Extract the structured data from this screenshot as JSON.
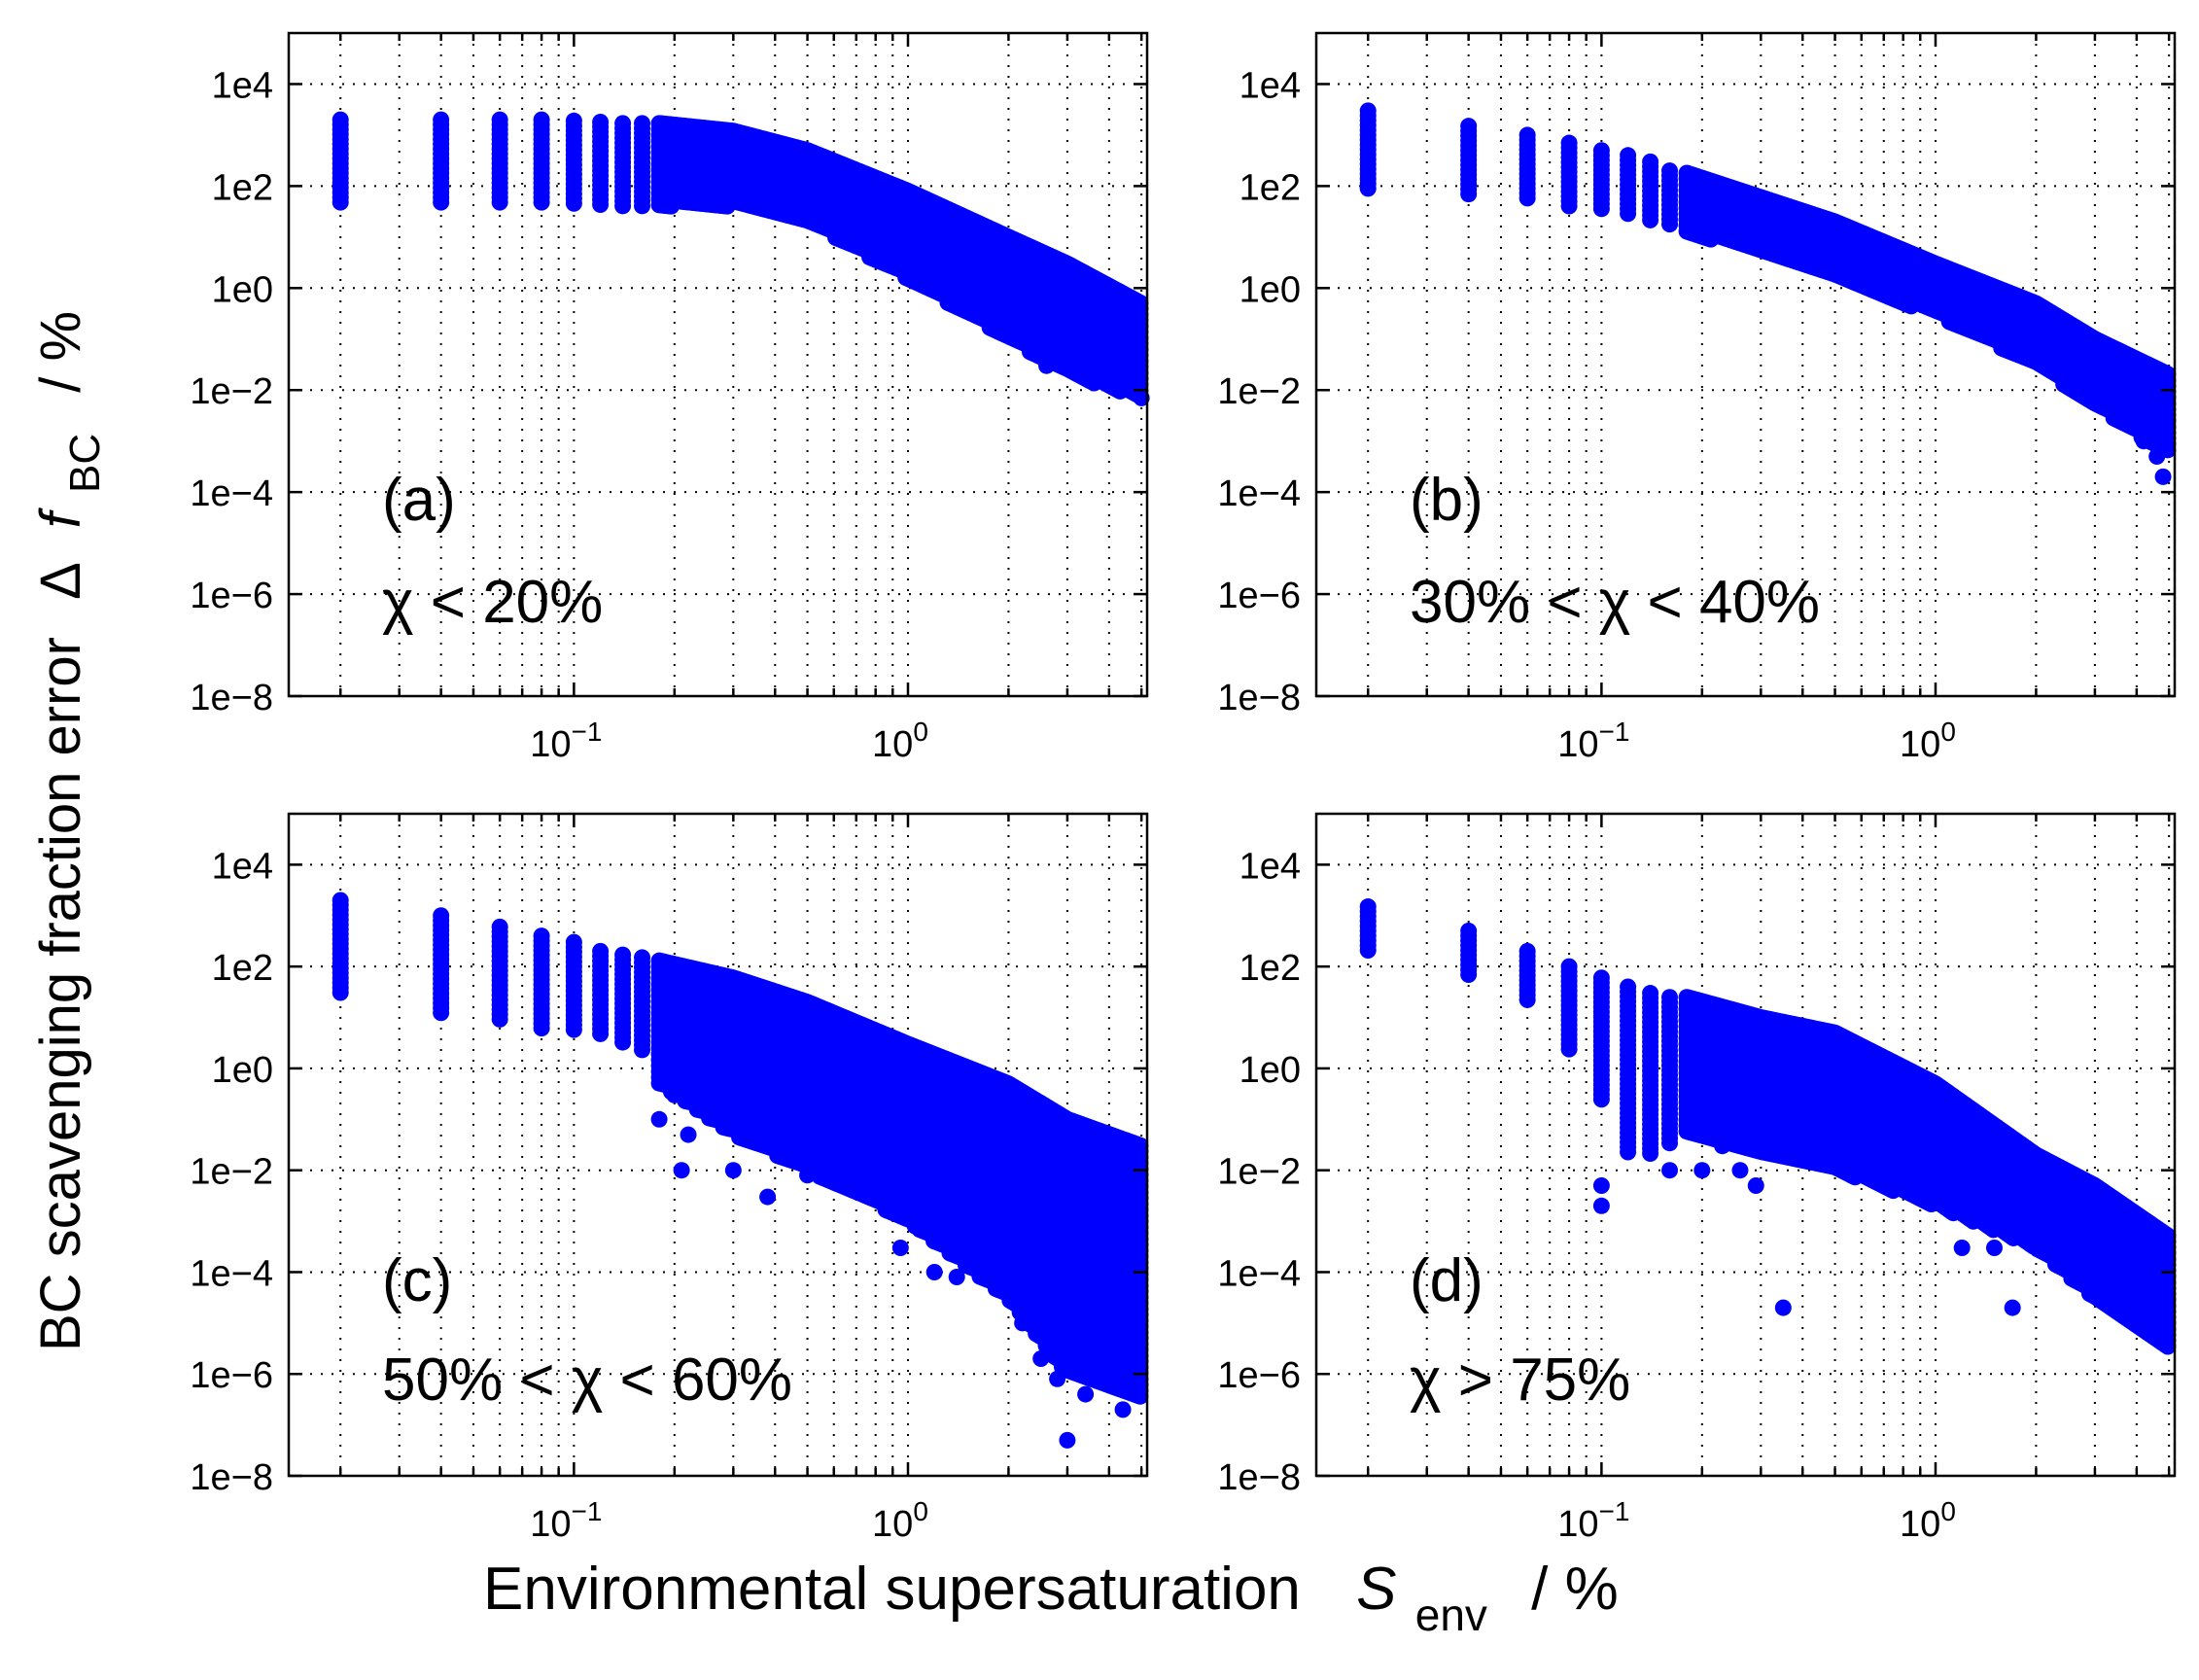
{
  "figure": {
    "ylabel": {
      "main": "BC scavenging fraction error",
      "symbol_delta": "Δ",
      "symbol_f": "f",
      "subscript": "BC",
      "unit": "/  %"
    },
    "xlabel": {
      "main": "Environmental supersaturation",
      "symbol": "S",
      "subscript": "env",
      "unit": "/  %"
    },
    "marker_color": "#0000ff"
  },
  "chart_data": [
    {
      "type": "scatter",
      "panel": "a",
      "label": "(a)",
      "condition": "χ < 20%",
      "xscale": "log",
      "yscale": "log",
      "xlim": [
        0.014,
        5.2
      ],
      "ylim": [
        1e-08,
        100000.0
      ],
      "xticks": [
        {
          "v": 0.1,
          "base": "10",
          "exp": "−1"
        },
        {
          "v": 1,
          "base": "10",
          "exp": "0"
        }
      ],
      "yticks": [
        {
          "v": 10000.0,
          "label": "1e4"
        },
        {
          "v": 100.0,
          "label": "1e2"
        },
        {
          "v": 1,
          "label": "1e0"
        },
        {
          "v": 0.01,
          "label": "1e−2"
        },
        {
          "v": 0.0001,
          "label": "1e−4"
        },
        {
          "v": 1e-06,
          "label": "1e−6"
        },
        {
          "v": 1e-08,
          "label": "1e−8"
        }
      ],
      "grid": true,
      "columns": [
        {
          "x": 0.02,
          "ymin": 40,
          "ymax": 2000
        },
        {
          "x": 0.04,
          "ymin": 40,
          "ymax": 2000
        },
        {
          "x": 0.06,
          "ymin": 40,
          "ymax": 2000
        },
        {
          "x": 0.08,
          "ymin": 40,
          "ymax": 2000
        },
        {
          "x": 0.1,
          "ymin": 40,
          "ymax": 1900
        },
        {
          "x": 0.12,
          "ymin": 40,
          "ymax": 1800
        },
        {
          "x": 0.14,
          "ymin": 40,
          "ymax": 1700
        },
        {
          "x": 0.16,
          "ymin": 40,
          "ymax": 1700
        }
      ],
      "band": [
        {
          "x": 0.18,
          "ymin": 40,
          "ymax": 1700
        },
        {
          "x": 0.3,
          "ymin": 40,
          "ymax": 1200
        },
        {
          "x": 0.5,
          "ymin": 20,
          "ymax": 500
        },
        {
          "x": 1,
          "ymin": 1.5,
          "ymax": 80
        },
        {
          "x": 2,
          "ymin": 0.1,
          "ymax": 10
        },
        {
          "x": 3,
          "ymin": 0.02,
          "ymax": 3
        },
        {
          "x": 5,
          "ymin": 0.007,
          "ymax": 0.5
        }
      ],
      "outliers": [
        {
          "x": 5.0,
          "y": 0.007
        },
        {
          "x": 2.6,
          "y": 0.03
        },
        {
          "x": 4.6,
          "y": 0.01
        }
      ]
    },
    {
      "type": "scatter",
      "panel": "b",
      "label": "(b)",
      "condition": "30% < χ < 40%",
      "xscale": "log",
      "yscale": "log",
      "xlim": [
        0.014,
        5.2
      ],
      "ylim": [
        1e-08,
        100000.0
      ],
      "xticks": [
        {
          "v": 0.1,
          "base": "10",
          "exp": "−1"
        },
        {
          "v": 1,
          "base": "10",
          "exp": "0"
        }
      ],
      "yticks": [
        {
          "v": 10000.0,
          "label": "1e4"
        },
        {
          "v": 100.0,
          "label": "1e2"
        },
        {
          "v": 1,
          "label": "1e0"
        },
        {
          "v": 0.01,
          "label": "1e−2"
        },
        {
          "v": 0.0001,
          "label": "1e−4"
        },
        {
          "v": 1e-06,
          "label": "1e−6"
        },
        {
          "v": 1e-08,
          "label": "1e−8"
        }
      ],
      "grid": true,
      "columns": [
        {
          "x": 0.02,
          "ymin": 80,
          "ymax": 3000
        },
        {
          "x": 0.04,
          "ymin": 60,
          "ymax": 1500
        },
        {
          "x": 0.06,
          "ymin": 50,
          "ymax": 1000
        },
        {
          "x": 0.08,
          "ymin": 40,
          "ymax": 700
        },
        {
          "x": 0.1,
          "ymin": 30,
          "ymax": 500
        },
        {
          "x": 0.12,
          "ymin": 25,
          "ymax": 400
        },
        {
          "x": 0.14,
          "ymin": 20,
          "ymax": 300
        },
        {
          "x": 0.16,
          "ymin": 15,
          "ymax": 200
        }
      ],
      "band": [
        {
          "x": 0.18,
          "ymin": 12,
          "ymax": 180
        },
        {
          "x": 0.3,
          "ymin": 5,
          "ymax": 60
        },
        {
          "x": 0.5,
          "ymin": 1.5,
          "ymax": 20
        },
        {
          "x": 1,
          "ymin": 0.3,
          "ymax": 3
        },
        {
          "x": 2,
          "ymin": 0.03,
          "ymax": 0.5
        },
        {
          "x": 3,
          "ymin": 0.005,
          "ymax": 0.1
        },
        {
          "x": 5,
          "ymin": 0.0005,
          "ymax": 0.02
        }
      ],
      "outliers": [
        {
          "x": 4.8,
          "y": 0.0002
        },
        {
          "x": 4.6,
          "y": 0.0005
        },
        {
          "x": 4.2,
          "y": 0.001
        }
      ]
    },
    {
      "type": "scatter",
      "panel": "c",
      "label": "(c)",
      "condition": "50% < χ < 60%",
      "xscale": "log",
      "yscale": "log",
      "xlim": [
        0.014,
        5.2
      ],
      "ylim": [
        1e-08,
        100000.0
      ],
      "xticks": [
        {
          "v": 0.1,
          "base": "10",
          "exp": "−1"
        },
        {
          "v": 1,
          "base": "10",
          "exp": "0"
        }
      ],
      "yticks": [
        {
          "v": 10000.0,
          "label": "1e4"
        },
        {
          "v": 100.0,
          "label": "1e2"
        },
        {
          "v": 1,
          "label": "1e0"
        },
        {
          "v": 0.01,
          "label": "1e−2"
        },
        {
          "v": 0.0001,
          "label": "1e−4"
        },
        {
          "v": 1e-06,
          "label": "1e−6"
        },
        {
          "v": 1e-08,
          "label": "1e−8"
        }
      ],
      "grid": true,
      "columns": [
        {
          "x": 0.02,
          "ymin": 30,
          "ymax": 2000
        },
        {
          "x": 0.04,
          "ymin": 12,
          "ymax": 1000
        },
        {
          "x": 0.06,
          "ymin": 8,
          "ymax": 600
        },
        {
          "x": 0.08,
          "ymin": 6,
          "ymax": 400
        },
        {
          "x": 0.1,
          "ymin": 5,
          "ymax": 300
        },
        {
          "x": 0.12,
          "ymin": 4,
          "ymax": 200
        },
        {
          "x": 0.14,
          "ymin": 3,
          "ymax": 170
        },
        {
          "x": 0.16,
          "ymin": 2,
          "ymax": 150
        }
      ],
      "band": [
        {
          "x": 0.18,
          "ymin": 0.5,
          "ymax": 130
        },
        {
          "x": 0.3,
          "ymin": 0.05,
          "ymax": 60
        },
        {
          "x": 0.5,
          "ymin": 0.01,
          "ymax": 20
        },
        {
          "x": 1,
          "ymin": 0.001,
          "ymax": 3
        },
        {
          "x": 2,
          "ymin": 3e-05,
          "ymax": 0.5
        },
        {
          "x": 3,
          "ymin": 1e-06,
          "ymax": 0.1
        },
        {
          "x": 5,
          "ymin": 3e-07,
          "ymax": 0.03
        }
      ],
      "outliers": [
        {
          "x": 0.18,
          "y": 0.1
        },
        {
          "x": 0.2,
          "y": 0.3
        },
        {
          "x": 0.22,
          "y": 0.05
        },
        {
          "x": 0.25,
          "y": 0.15
        },
        {
          "x": 0.28,
          "y": 0.08
        },
        {
          "x": 0.21,
          "y": 0.01
        },
        {
          "x": 0.3,
          "y": 0.01
        },
        {
          "x": 0.38,
          "y": 0.003
        },
        {
          "x": 0.45,
          "y": 0.02
        },
        {
          "x": 0.5,
          "y": 0.008
        },
        {
          "x": 0.55,
          "y": 0.05
        },
        {
          "x": 0.7,
          "y": 0.004
        },
        {
          "x": 0.85,
          "y": 0.002
        },
        {
          "x": 0.95,
          "y": 0.0003
        },
        {
          "x": 1.05,
          "y": 0.0008
        },
        {
          "x": 1.2,
          "y": 0.0001
        },
        {
          "x": 1.4,
          "y": 8e-05
        },
        {
          "x": 1.6,
          "y": 0.0002
        },
        {
          "x": 2.2,
          "y": 1e-05
        },
        {
          "x": 2.5,
          "y": 2e-06
        },
        {
          "x": 2.8,
          "y": 8e-07
        },
        {
          "x": 3.0,
          "y": 5e-08
        },
        {
          "x": 3.4,
          "y": 4e-07
        },
        {
          "x": 4.4,
          "y": 2e-07
        }
      ]
    },
    {
      "type": "scatter",
      "panel": "d",
      "label": "(d)",
      "condition": "χ > 75%",
      "xscale": "log",
      "yscale": "log",
      "xlim": [
        0.014,
        5.2
      ],
      "ylim": [
        1e-08,
        100000.0
      ],
      "xticks": [
        {
          "v": 0.1,
          "base": "10",
          "exp": "−1"
        },
        {
          "v": 1,
          "base": "10",
          "exp": "0"
        }
      ],
      "yticks": [
        {
          "v": 10000.0,
          "label": "1e4"
        },
        {
          "v": 100.0,
          "label": "1e2"
        },
        {
          "v": 1,
          "label": "1e0"
        },
        {
          "v": 0.01,
          "label": "1e−2"
        },
        {
          "v": 0.0001,
          "label": "1e−4"
        },
        {
          "v": 1e-06,
          "label": "1e−6"
        },
        {
          "v": 1e-08,
          "label": "1e−8"
        }
      ],
      "grid": true,
      "columns": [
        {
          "x": 0.02,
          "ymin": 200,
          "ymax": 1500
        },
        {
          "x": 0.04,
          "ymin": 60,
          "ymax": 500
        },
        {
          "x": 0.06,
          "ymin": 20,
          "ymax": 200
        },
        {
          "x": 0.08,
          "ymin": 2,
          "ymax": 100
        },
        {
          "x": 0.1,
          "ymin": 0.2,
          "ymax": 60
        },
        {
          "x": 0.12,
          "ymin": 0.02,
          "ymax": 40
        },
        {
          "x": 0.14,
          "ymin": 0.02,
          "ymax": 30
        },
        {
          "x": 0.16,
          "ymin": 0.03,
          "ymax": 25
        }
      ],
      "band": [
        {
          "x": 0.18,
          "ymin": 0.05,
          "ymax": 25
        },
        {
          "x": 0.3,
          "ymin": 0.02,
          "ymax": 10
        },
        {
          "x": 0.5,
          "ymin": 0.01,
          "ymax": 5
        },
        {
          "x": 1,
          "ymin": 0.002,
          "ymax": 0.5
        },
        {
          "x": 2,
          "ymin": 0.0003,
          "ymax": 0.02
        },
        {
          "x": 3,
          "ymin": 3e-05,
          "ymax": 0.005
        },
        {
          "x": 5,
          "ymin": 3e-06,
          "ymax": 0.0005
        }
      ],
      "outliers": [
        {
          "x": 0.1,
          "y": 0.005
        },
        {
          "x": 0.1,
          "y": 0.002
        },
        {
          "x": 0.16,
          "y": 0.01
        },
        {
          "x": 0.2,
          "y": 0.01
        },
        {
          "x": 0.23,
          "y": 0.03
        },
        {
          "x": 0.26,
          "y": 0.01
        },
        {
          "x": 0.29,
          "y": 0.005
        },
        {
          "x": 0.35,
          "y": 2e-05
        },
        {
          "x": 0.45,
          "y": 0.02
        },
        {
          "x": 0.7,
          "y": 0.005
        },
        {
          "x": 0.9,
          "y": 0.008
        },
        {
          "x": 1.2,
          "y": 0.0003
        },
        {
          "x": 1.5,
          "y": 0.0003
        },
        {
          "x": 1.7,
          "y": 2e-05
        }
      ]
    }
  ]
}
